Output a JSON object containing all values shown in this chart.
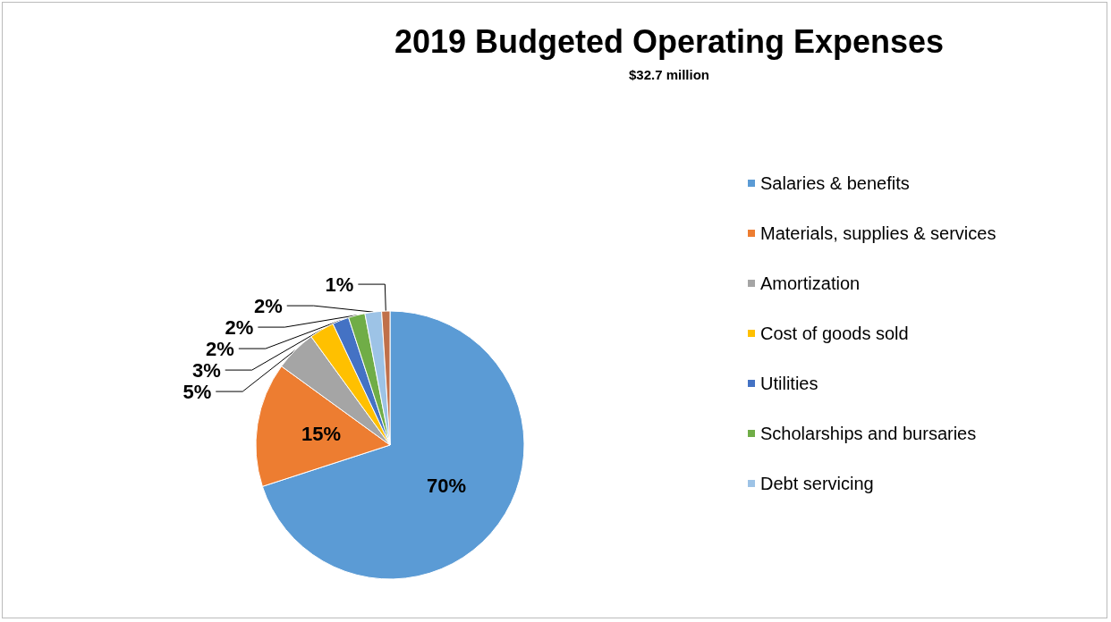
{
  "chart_data": {
    "type": "pie",
    "title": "2019 Budgeted Operating Expenses",
    "subtitle": "$32.7 million",
    "categories": [
      "Salaries & benefits",
      "Materials, supplies & services",
      "Amortization",
      "Cost of goods sold",
      "Utilities",
      "Scholarships and bursaries",
      "Debt servicing",
      null
    ],
    "values": [
      70,
      15,
      5,
      3,
      2,
      2,
      2,
      1
    ],
    "colors": [
      "#5b9bd5",
      "#ed7d31",
      "#a5a5a5",
      "#ffc000",
      "#4472c4",
      "#70ad47",
      "#9dc3e6",
      "#c0704a"
    ],
    "value_labels": [
      "70%",
      "15%",
      "5%",
      "3%",
      "2%",
      "2%",
      "2%",
      "1%"
    ],
    "legend": "right"
  }
}
